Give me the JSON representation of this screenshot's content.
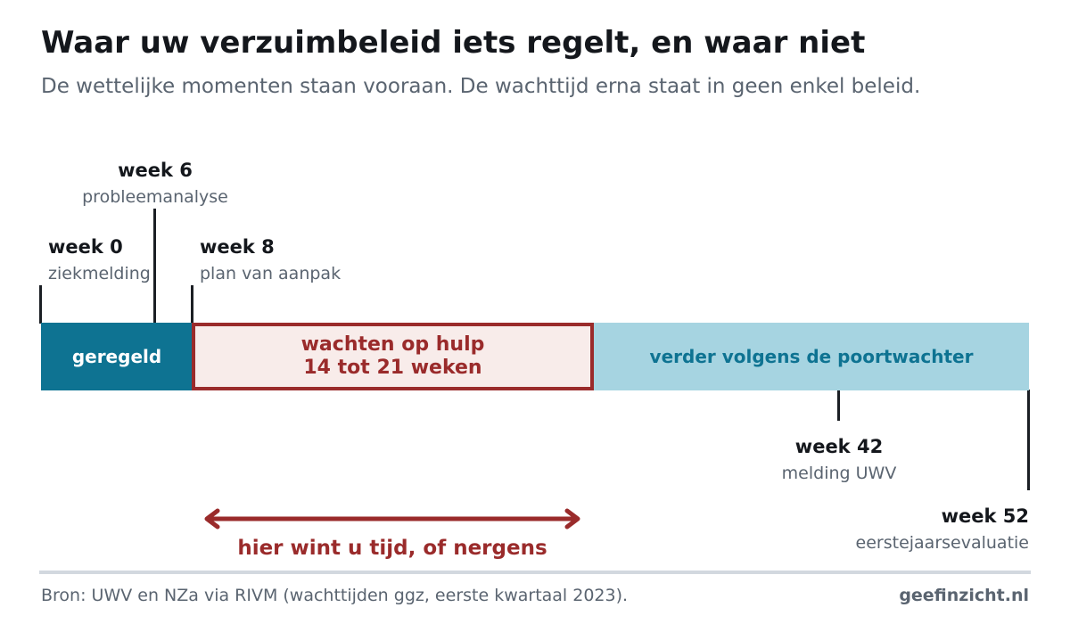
{
  "header": {
    "title": "Waar uw verzuimbeleid iets regelt, en waar niet",
    "subtitle": "De wettelijke momenten staan vooraan. De wachttijd erna staat in geen enkel beleid."
  },
  "timeline": {
    "range_weeks": [
      0,
      52
    ],
    "milestones": [
      {
        "week": 0,
        "label": "week 0",
        "desc": "ziekmelding"
      },
      {
        "week": 6,
        "label": "week 6",
        "desc": "probleemanalyse"
      },
      {
        "week": 8,
        "label": "week 8",
        "desc": "plan van aanpak"
      },
      {
        "week": 42,
        "label": "week 42",
        "desc": "melding UWV"
      },
      {
        "week": 52,
        "label": "week 52",
        "desc": "eerstejaarsevaluatie"
      }
    ],
    "segments": {
      "regulated": {
        "label": "geregeld",
        "from_week": 0,
        "to_week": 8
      },
      "wait": {
        "line1": "wachten op hulp",
        "line2": "14 tot 21 weken",
        "from_week": 8,
        "to_week": 29
      },
      "later": {
        "label": "verder volgens de poortwachter",
        "from_week": 29,
        "to_week": 52
      }
    },
    "gap_label": "hier wint u tijd, of nergens"
  },
  "footer": {
    "source": "Bron: UWV en NZa via RIVM (wachttijden ggz, eerste kwartaal 2023).",
    "brand": "geefinzicht.nl"
  },
  "colors": {
    "regulated": "#0e7392",
    "wait_border": "#9a2b2b",
    "wait_fill": "#f8ecea",
    "later": "#a6d4e1",
    "tick": "#1b1f24"
  }
}
